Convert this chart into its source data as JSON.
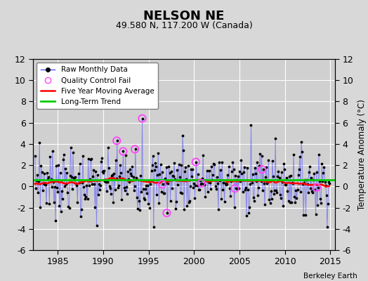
{
  "title": "NELSON NE",
  "subtitle": "49.580 N, 117.200 W (Canada)",
  "ylabel": "Temperature Anomaly (°C)",
  "credit": "Berkeley Earth",
  "ylim": [
    -6,
    12
  ],
  "yticks": [
    -6,
    -4,
    -2,
    0,
    2,
    4,
    6,
    8,
    10,
    12
  ],
  "bg_color": "#d8d8d8",
  "plot_bg": "#d0d0d0",
  "grid_color": "#ffffff",
  "raw_color": "#5555ff",
  "raw_alpha": 0.6,
  "dot_color": "black",
  "qc_color": "#ff44ff",
  "ma_color": "red",
  "trend_color": "#00cc00",
  "trend_value": 0.6,
  "xlim_left": 1982.3,
  "xlim_right": 2015.5,
  "xticks": [
    1985,
    1990,
    1995,
    2000,
    2005,
    2010,
    2015
  ]
}
